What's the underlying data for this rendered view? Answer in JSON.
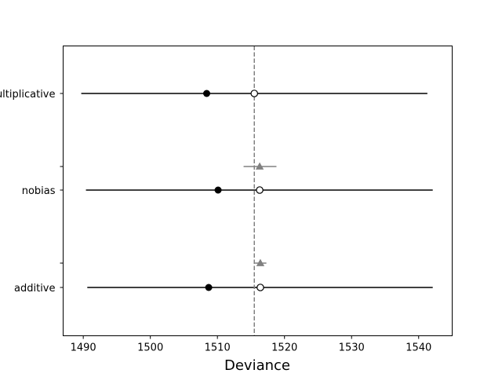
{
  "chart_data": {
    "type": "scatter",
    "title": "",
    "xlabel": "Deviance",
    "ylabel": "",
    "xlim": [
      1487,
      1545
    ],
    "xticks": [
      1490,
      1500,
      1510,
      1520,
      1530,
      1540
    ],
    "xtick_labels": [
      "1490",
      "1500",
      "1510",
      "1520",
      "1530",
      "1540"
    ],
    "categories": [
      "multiplicative",
      "nobias",
      "additive"
    ],
    "reference_line": {
      "x": 1515.5,
      "style": "dashed",
      "color": "#808080"
    },
    "series": [
      {
        "name": "interval",
        "style": "line",
        "color": "#000000",
        "values": [
          {
            "category": "multiplicative",
            "low": 1489.7,
            "high": 1541.3
          },
          {
            "category": "nobias",
            "low": 1490.4,
            "high": 1542.1
          },
          {
            "category": "additive",
            "low": 1490.6,
            "high": 1542.1
          }
        ]
      },
      {
        "name": "filled_point",
        "marker": "filled-circle",
        "color": "#000000",
        "values": [
          {
            "category": "multiplicative",
            "x": 1508.4
          },
          {
            "category": "nobias",
            "x": 1510.1
          },
          {
            "category": "additive",
            "x": 1508.7
          }
        ]
      },
      {
        "name": "open_point",
        "marker": "open-circle",
        "color": "#000000",
        "values": [
          {
            "category": "multiplicative",
            "x": 1515.5
          },
          {
            "category": "nobias",
            "x": 1516.3
          },
          {
            "category": "additive",
            "x": 1516.4
          }
        ]
      },
      {
        "name": "between_triangle",
        "marker": "triangle",
        "color": "#808080",
        "values": [
          {
            "between": [
              "multiplicative",
              "nobias"
            ],
            "x": 1516.3,
            "low": 1513.9,
            "high": 1518.8
          },
          {
            "between": [
              "nobias",
              "additive"
            ],
            "x": 1516.4,
            "low": 1515.6,
            "high": 1517.3
          }
        ]
      }
    ]
  }
}
